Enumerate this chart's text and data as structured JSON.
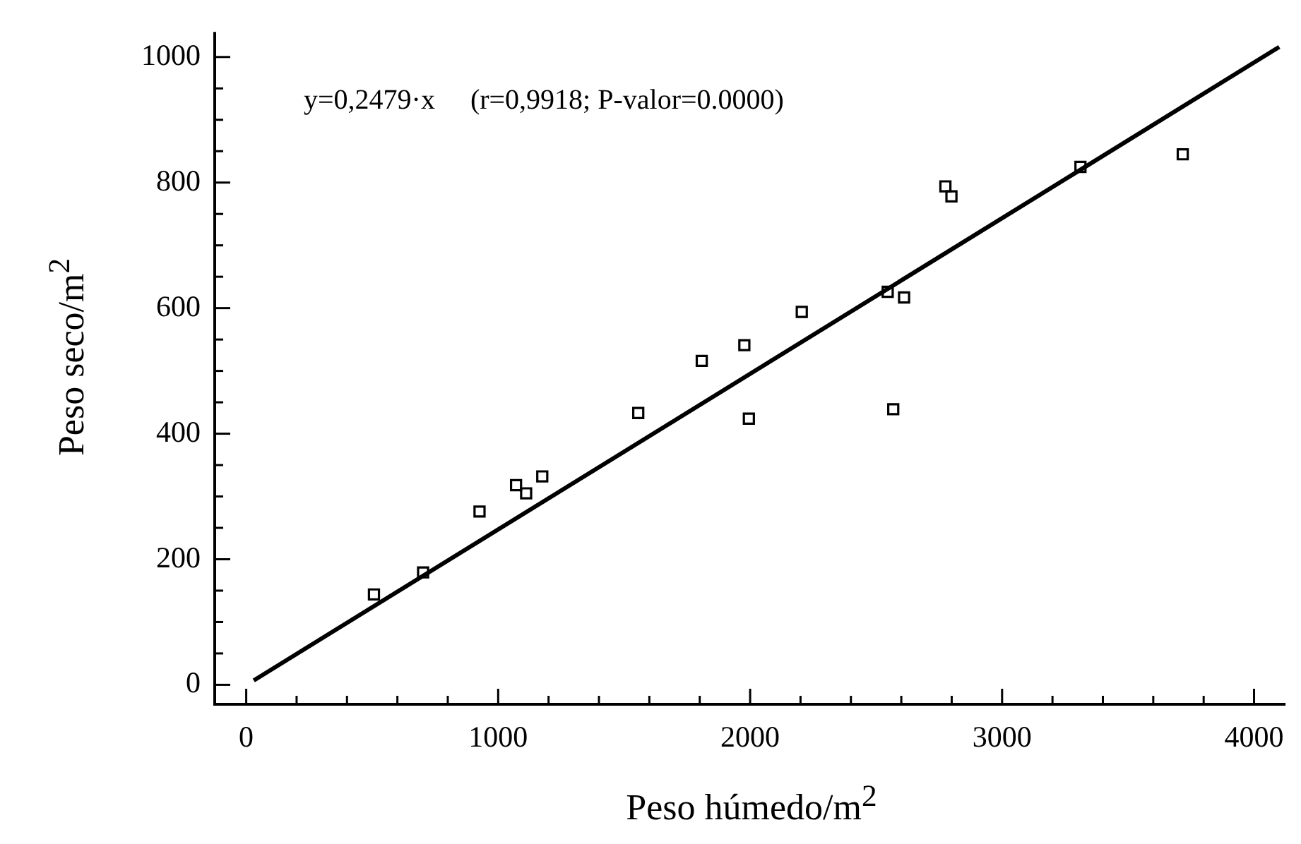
{
  "chart_data": {
    "type": "scatter",
    "xlabel": "Peso húmedo/m$^{2}$",
    "ylabel": "Peso seco/m$^{2}$",
    "annotations": [
      "y=0,2479·x     (r=0,9918; P-valor=0.0000)"
    ],
    "marker": "square",
    "grid": false,
    "legend": false,
    "xlim": [
      -125,
      4125
    ],
    "ylim": [
      -31,
      1040
    ],
    "xticks": [
      0,
      {
        "value": 200,
        "label": null
      },
      {
        "value": 400,
        "label": null
      },
      {
        "value": 600,
        "label": null
      },
      {
        "value": 800,
        "label": null
      },
      1000,
      {
        "value": 1200,
        "label": null
      },
      {
        "value": 1400,
        "label": null
      },
      {
        "value": 1600,
        "label": null
      },
      {
        "value": 1800,
        "label": null
      },
      2000,
      {
        "value": 2200,
        "label": null
      },
      {
        "value": 2400,
        "label": null
      },
      {
        "value": 2600,
        "label": null
      },
      {
        "value": 2800,
        "label": null
      },
      3000,
      {
        "value": 3200,
        "label": null
      },
      {
        "value": 3400,
        "label": null
      },
      {
        "value": 3600,
        "label": null
      },
      {
        "value": 3800,
        "label": null
      },
      4000
    ],
    "yticks": [
      0,
      {
        "value": 50,
        "label": null
      },
      {
        "value": 100,
        "label": null
      },
      {
        "value": 150,
        "label": null
      },
      200,
      {
        "value": 250,
        "label": null
      },
      {
        "value": 300,
        "label": null
      },
      {
        "value": 350,
        "label": null
      },
      400,
      {
        "value": 450,
        "label": null
      },
      {
        "value": 500,
        "label": null
      },
      {
        "value": 550,
        "label": null
      },
      600,
      {
        "value": 650,
        "label": null
      },
      {
        "value": 700,
        "label": null
      },
      {
        "value": 750,
        "label": null
      },
      800,
      {
        "value": 850,
        "label": null
      },
      {
        "value": 900,
        "label": null
      },
      {
        "value": 950,
        "label": null
      },
      1000
    ],
    "series": [
      {
        "type": "scatter",
        "color": "#000000",
        "x": [
          507,
          702,
          926,
          1071,
          1111,
          1175,
          1556,
          1808,
          1977,
          1995,
          2205,
          2546,
          2568,
          2611,
          2775,
          2799,
          3311,
          3717
        ],
        "values": [
          144,
          179,
          276,
          318,
          305,
          332,
          433,
          516,
          541,
          424,
          594,
          626,
          439,
          617,
          794,
          778,
          825,
          845
        ]
      },
      {
        "type": "line",
        "color": "#000000",
        "marker": "none",
        "line_style": "solid",
        "x": [
          30,
          4100
        ],
        "values": [
          7,
          1016
        ]
      }
    ]
  }
}
